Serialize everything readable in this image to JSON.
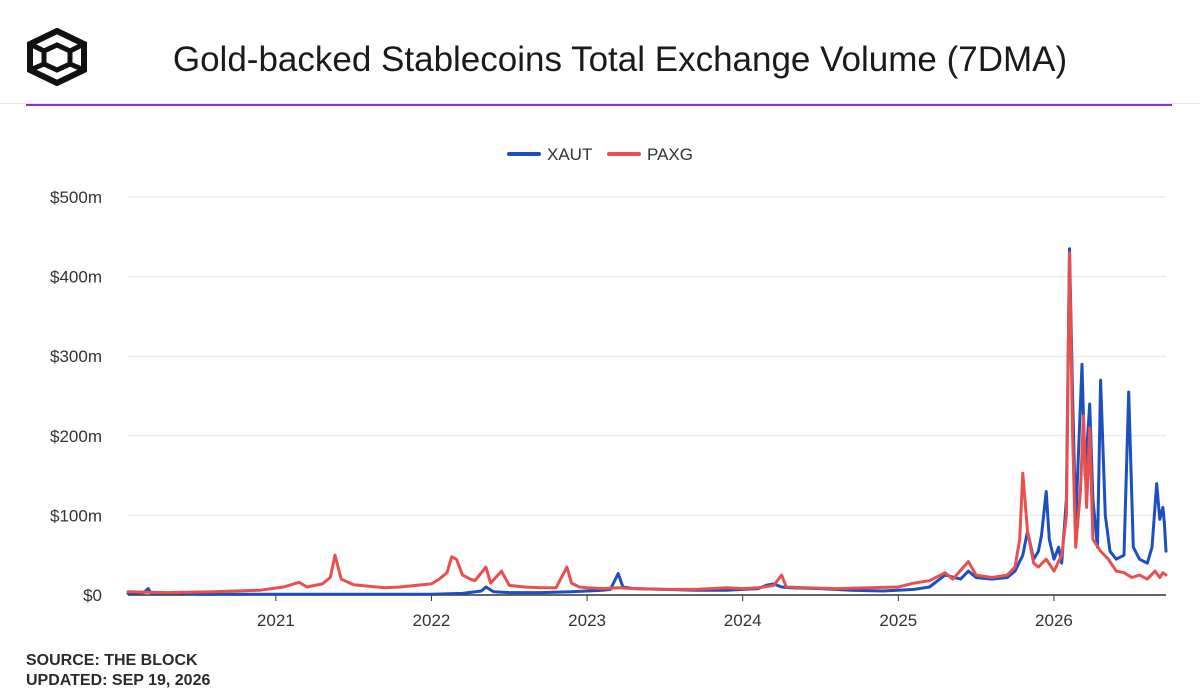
{
  "header": {
    "title": "Gold-backed Stablecoins Total Exchange Volume (7DMA)",
    "logo_icon": "the-block-cube-logo-icon"
  },
  "footer": {
    "source": "SOURCE: THE BLOCK",
    "updated": "UPDATED: SEP 19, 2026"
  },
  "colors": {
    "accent": "#8e2fd0",
    "xaut": "#1e4fbf",
    "paxg": "#e8504f"
  },
  "chart_data": {
    "type": "line",
    "title": "Gold-backed Stablecoins Total Exchange Volume (7DMA)",
    "xlabel": "",
    "ylabel": "",
    "x_range": [
      2020.05,
      2026.72
    ],
    "ylim": [
      0,
      500
    ],
    "y_unit": "$m",
    "y_ticks": [
      0,
      100,
      200,
      300,
      400,
      500
    ],
    "y_tick_labels": [
      "$0",
      "$100m",
      "$200m",
      "$300m",
      "$400m",
      "$500m"
    ],
    "x_ticks": [
      2021,
      2022,
      2023,
      2024,
      2025,
      2026
    ],
    "x_tick_labels": [
      "2021",
      "2022",
      "2023",
      "2024",
      "2025",
      "2026"
    ],
    "grid": true,
    "legend_position": "top-center",
    "series": [
      {
        "name": "XAUT",
        "color": "#1e4fbf",
        "points": [
          [
            2020.05,
            2
          ],
          [
            2020.15,
            3
          ],
          [
            2020.18,
            8
          ],
          [
            2020.2,
            2
          ],
          [
            2020.3,
            2
          ],
          [
            2020.35,
            3
          ],
          [
            2020.5,
            1
          ],
          [
            2020.8,
            1
          ],
          [
            2021.0,
            1
          ],
          [
            2021.3,
            1
          ],
          [
            2021.6,
            1
          ],
          [
            2022.0,
            1
          ],
          [
            2022.2,
            2
          ],
          [
            2022.32,
            5
          ],
          [
            2022.35,
            10
          ],
          [
            2022.4,
            4
          ],
          [
            2022.5,
            3
          ],
          [
            2022.7,
            3
          ],
          [
            2022.9,
            4
          ],
          [
            2023.0,
            5
          ],
          [
            2023.1,
            6
          ],
          [
            2023.15,
            7
          ],
          [
            2023.2,
            27
          ],
          [
            2023.23,
            10
          ],
          [
            2023.3,
            8
          ],
          [
            2023.5,
            7
          ],
          [
            2023.7,
            6
          ],
          [
            2023.9,
            6
          ],
          [
            2024.0,
            7
          ],
          [
            2024.1,
            8
          ],
          [
            2024.15,
            12
          ],
          [
            2024.2,
            14
          ],
          [
            2024.25,
            10
          ],
          [
            2024.3,
            9
          ],
          [
            2024.5,
            8
          ],
          [
            2024.7,
            6
          ],
          [
            2024.9,
            5
          ],
          [
            2025.0,
            6
          ],
          [
            2025.1,
            7
          ],
          [
            2025.2,
            10
          ],
          [
            2025.3,
            25
          ],
          [
            2025.4,
            20
          ],
          [
            2025.45,
            30
          ],
          [
            2025.5,
            22
          ],
          [
            2025.6,
            20
          ],
          [
            2025.7,
            22
          ],
          [
            2025.75,
            30
          ],
          [
            2025.8,
            50
          ],
          [
            2025.83,
            80
          ],
          [
            2025.87,
            45
          ],
          [
            2025.9,
            55
          ],
          [
            2025.92,
            75
          ],
          [
            2025.95,
            130
          ],
          [
            2025.97,
            70
          ],
          [
            2026.0,
            45
          ],
          [
            2026.03,
            60
          ],
          [
            2026.05,
            40
          ],
          [
            2026.08,
            120
          ],
          [
            2026.1,
            435
          ],
          [
            2026.12,
            250
          ],
          [
            2026.14,
            90
          ],
          [
            2026.18,
            290
          ],
          [
            2026.2,
            150
          ],
          [
            2026.23,
            240
          ],
          [
            2026.25,
            120
          ],
          [
            2026.28,
            60
          ],
          [
            2026.3,
            270
          ],
          [
            2026.33,
            100
          ],
          [
            2026.36,
            55
          ],
          [
            2026.4,
            45
          ],
          [
            2026.45,
            50
          ],
          [
            2026.48,
            255
          ],
          [
            2026.51,
            60
          ],
          [
            2026.55,
            45
          ],
          [
            2026.6,
            40
          ],
          [
            2026.63,
            60
          ],
          [
            2026.66,
            140
          ],
          [
            2026.68,
            95
          ],
          [
            2026.7,
            110
          ],
          [
            2026.71,
            90
          ],
          [
            2026.72,
            55
          ]
        ]
      },
      {
        "name": "PAXG",
        "color": "#e8504f",
        "points": [
          [
            2020.05,
            4
          ],
          [
            2020.3,
            3
          ],
          [
            2020.6,
            4
          ],
          [
            2020.9,
            6
          ],
          [
            2021.05,
            10
          ],
          [
            2021.15,
            16
          ],
          [
            2021.2,
            10
          ],
          [
            2021.3,
            14
          ],
          [
            2021.35,
            22
          ],
          [
            2021.38,
            50
          ],
          [
            2021.42,
            20
          ],
          [
            2021.5,
            13
          ],
          [
            2021.6,
            11
          ],
          [
            2021.7,
            9
          ],
          [
            2021.8,
            10
          ],
          [
            2021.9,
            12
          ],
          [
            2022.0,
            14
          ],
          [
            2022.05,
            20
          ],
          [
            2022.1,
            28
          ],
          [
            2022.13,
            48
          ],
          [
            2022.16,
            45
          ],
          [
            2022.2,
            25
          ],
          [
            2022.25,
            20
          ],
          [
            2022.28,
            18
          ],
          [
            2022.35,
            35
          ],
          [
            2022.38,
            15
          ],
          [
            2022.45,
            30
          ],
          [
            2022.5,
            12
          ],
          [
            2022.6,
            10
          ],
          [
            2022.7,
            9
          ],
          [
            2022.8,
            9
          ],
          [
            2022.87,
            35
          ],
          [
            2022.9,
            15
          ],
          [
            2022.95,
            10
          ],
          [
            2023.0,
            9
          ],
          [
            2023.1,
            8
          ],
          [
            2023.2,
            9
          ],
          [
            2023.3,
            8
          ],
          [
            2023.5,
            7
          ],
          [
            2023.7,
            7
          ],
          [
            2023.9,
            9
          ],
          [
            2024.0,
            8
          ],
          [
            2024.1,
            9
          ],
          [
            2024.2,
            12
          ],
          [
            2024.25,
            25
          ],
          [
            2024.28,
            10
          ],
          [
            2024.4,
            9
          ],
          [
            2024.6,
            8
          ],
          [
            2024.8,
            9
          ],
          [
            2025.0,
            10
          ],
          [
            2025.1,
            15
          ],
          [
            2025.2,
            18
          ],
          [
            2025.3,
            28
          ],
          [
            2025.35,
            20
          ],
          [
            2025.45,
            42
          ],
          [
            2025.5,
            25
          ],
          [
            2025.6,
            22
          ],
          [
            2025.7,
            25
          ],
          [
            2025.75,
            35
          ],
          [
            2025.78,
            70
          ],
          [
            2025.8,
            153
          ],
          [
            2025.83,
            80
          ],
          [
            2025.87,
            40
          ],
          [
            2025.9,
            35
          ],
          [
            2025.95,
            45
          ],
          [
            2026.0,
            30
          ],
          [
            2026.05,
            50
          ],
          [
            2026.08,
            100
          ],
          [
            2026.1,
            430
          ],
          [
            2026.12,
            200
          ],
          [
            2026.14,
            60
          ],
          [
            2026.17,
            130
          ],
          [
            2026.19,
            225
          ],
          [
            2026.21,
            110
          ],
          [
            2026.23,
            210
          ],
          [
            2026.25,
            70
          ],
          [
            2026.3,
            55
          ],
          [
            2026.35,
            45
          ],
          [
            2026.4,
            30
          ],
          [
            2026.45,
            28
          ],
          [
            2026.5,
            22
          ],
          [
            2026.55,
            25
          ],
          [
            2026.6,
            20
          ],
          [
            2026.65,
            30
          ],
          [
            2026.68,
            22
          ],
          [
            2026.7,
            28
          ],
          [
            2026.72,
            25
          ]
        ]
      }
    ]
  }
}
